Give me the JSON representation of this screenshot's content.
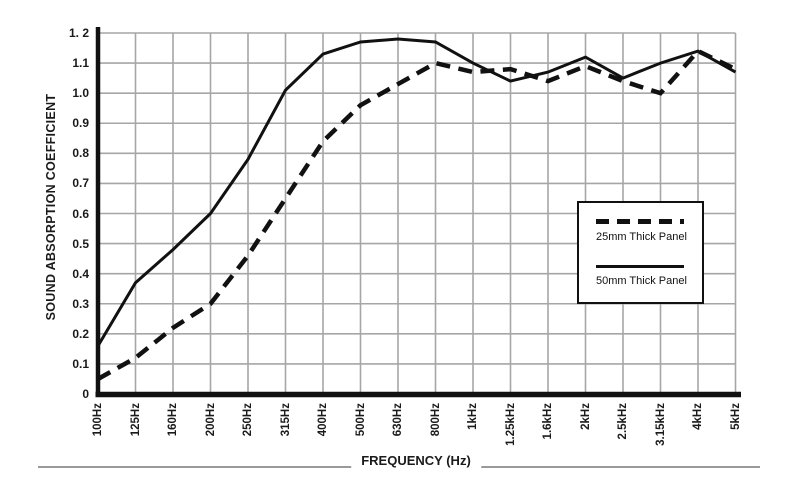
{
  "chart_data": {
    "type": "line",
    "title": "",
    "xlabel": "FREQUENCY (Hz)",
    "ylabel": "SOUND ABSORPTION COEFFICIENT",
    "categories": [
      "100Hz",
      "125Hz",
      "160Hz",
      "200Hz",
      "250Hz",
      "315Hz",
      "400Hz",
      "500Hz",
      "630Hz",
      "800Hz",
      "1kHz",
      "1.25kHz",
      "1.6kHz",
      "2kHz",
      "2.5kHz",
      "3.15kHz",
      "4kHz",
      "5kHz"
    ],
    "ylim": [
      0,
      1.2
    ],
    "ytick_labels": [
      "0",
      "0.1",
      "0.2",
      "0.3",
      "0.4",
      "0.5",
      "0.6",
      "0.7",
      "0.8",
      "0.9",
      "1.0",
      "1.1",
      "1. 2"
    ],
    "grid": true,
    "grid_color": "#a6a6a6",
    "axis_color": "#111111",
    "line_color": "#111111",
    "legend_position": "middle-right",
    "series": [
      {
        "name": "25mm Thick Panel",
        "style": "dashed",
        "values": [
          0.05,
          0.12,
          0.22,
          0.3,
          0.46,
          0.65,
          0.84,
          0.96,
          1.03,
          1.1,
          1.07,
          1.08,
          1.04,
          1.09,
          1.04,
          1.0,
          1.14,
          1.08
        ]
      },
      {
        "name": "50mm Thick Panel",
        "style": "solid",
        "values": [
          0.16,
          0.37,
          0.48,
          0.6,
          0.78,
          1.01,
          1.13,
          1.17,
          1.18,
          1.17,
          1.1,
          1.04,
          1.07,
          1.12,
          1.05,
          1.1,
          1.14,
          1.07
        ]
      }
    ]
  }
}
